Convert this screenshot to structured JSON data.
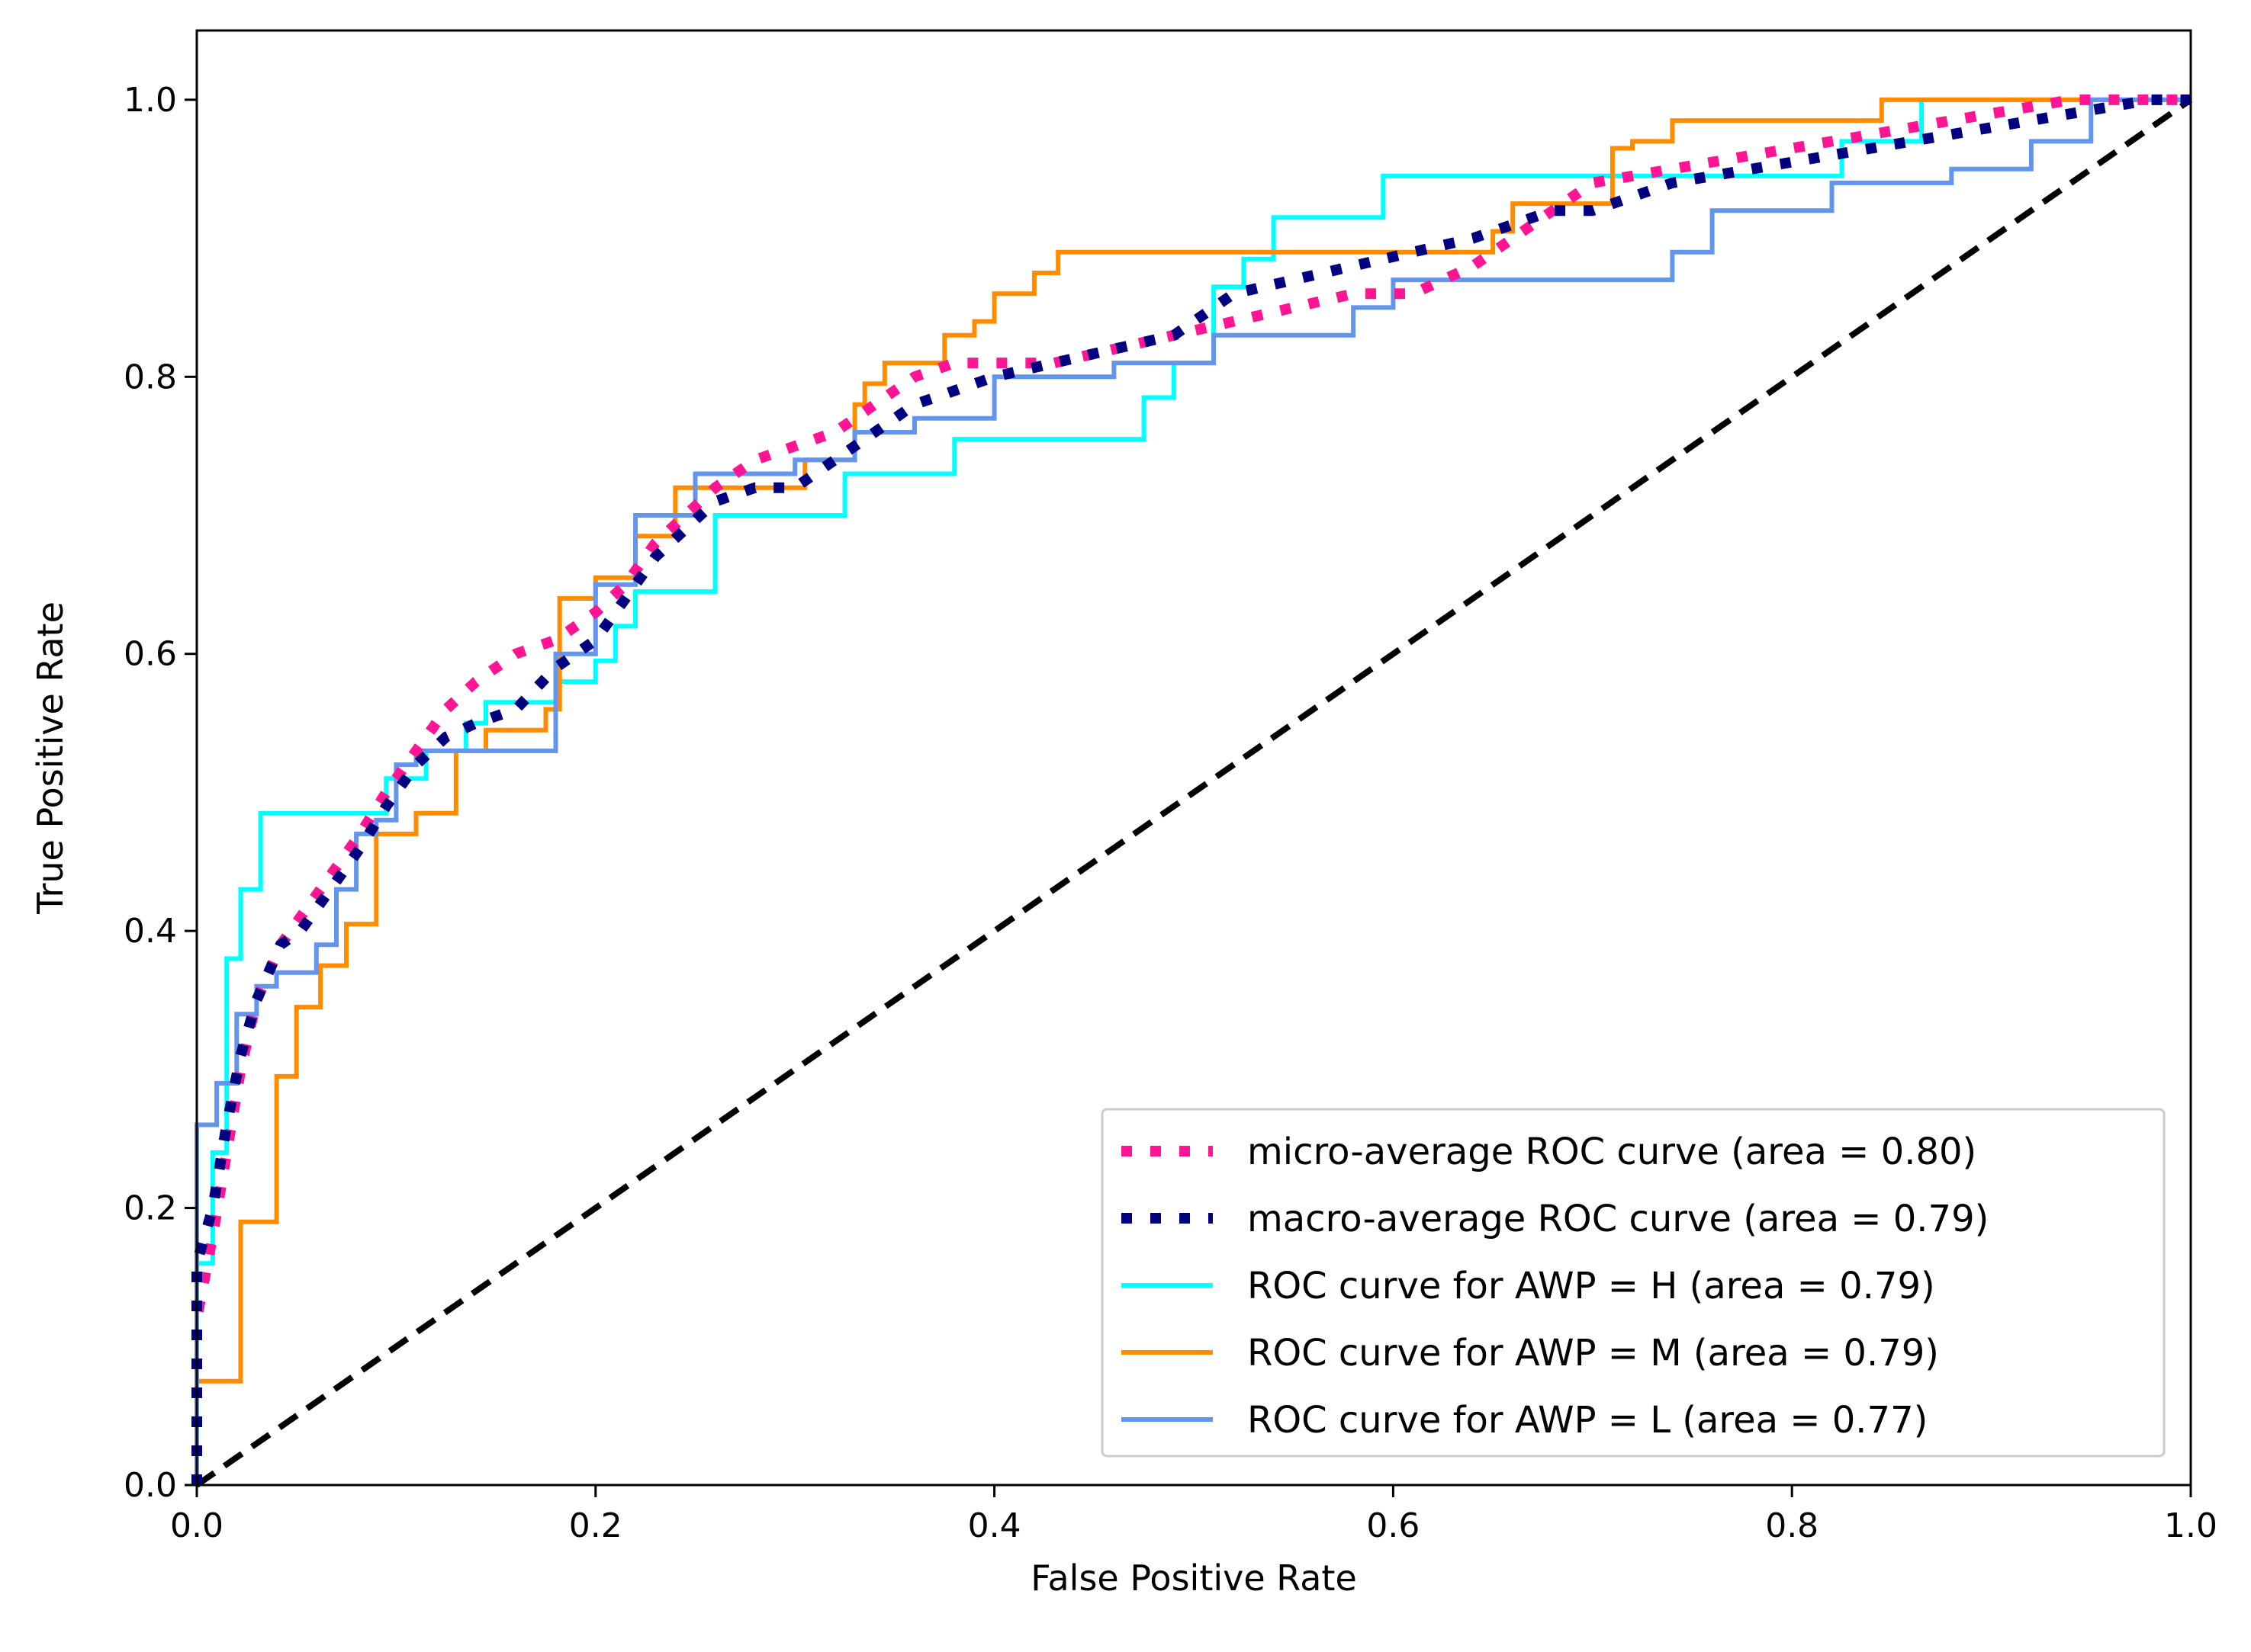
{
  "chart_data": {
    "type": "line",
    "title": "",
    "xlabel": "False Positive Rate",
    "ylabel": "True Positive Rate",
    "xlim": [
      0.0,
      1.0
    ],
    "ylim": [
      0.0,
      1.05
    ],
    "xticks": [
      "0.0",
      "0.2",
      "0.4",
      "0.6",
      "0.8",
      "1.0"
    ],
    "yticks": [
      "0.0",
      "0.2",
      "0.4",
      "0.6",
      "0.8",
      "1.0"
    ],
    "grid": false,
    "legend_position": "lower-right",
    "series": [
      {
        "name": "micro-average ROC curve (area = 0.80)",
        "color": "#ff1493",
        "style": "dotted",
        "x": [
          0.0,
          0.0,
          0.008,
          0.015,
          0.022,
          0.03,
          0.042,
          0.052,
          0.062,
          0.072,
          0.082,
          0.095,
          0.11,
          0.125,
          0.14,
          0.16,
          0.18,
          0.2,
          0.215,
          0.23,
          0.245,
          0.26,
          0.28,
          0.3,
          0.32,
          0.34,
          0.36,
          0.38,
          0.4,
          0.43,
          0.46,
          0.49,
          0.52,
          0.55,
          0.58,
          0.61,
          0.64,
          0.66,
          0.68,
          0.7,
          0.74,
          0.78,
          0.82,
          0.86,
          0.9,
          0.94,
          0.98,
          1.0
        ],
        "y": [
          0.0,
          0.12,
          0.18,
          0.24,
          0.3,
          0.35,
          0.39,
          0.41,
          0.43,
          0.45,
          0.47,
          0.5,
          0.53,
          0.56,
          0.58,
          0.6,
          0.61,
          0.63,
          0.65,
          0.68,
          0.7,
          0.72,
          0.74,
          0.75,
          0.76,
          0.78,
          0.8,
          0.81,
          0.81,
          0.81,
          0.82,
          0.83,
          0.84,
          0.85,
          0.86,
          0.86,
          0.88,
          0.9,
          0.92,
          0.94,
          0.95,
          0.96,
          0.97,
          0.98,
          0.99,
          1.0,
          1.0,
          1.0
        ]
      },
      {
        "name": "macro-average ROC curve (area = 0.79)",
        "color": "#000080",
        "style": "dotted",
        "x": [
          0.0,
          0.0,
          0.008,
          0.015,
          0.022,
          0.03,
          0.042,
          0.052,
          0.062,
          0.072,
          0.082,
          0.095,
          0.11,
          0.125,
          0.14,
          0.16,
          0.18,
          0.2,
          0.215,
          0.23,
          0.245,
          0.26,
          0.28,
          0.3,
          0.32,
          0.34,
          0.36,
          0.38,
          0.4,
          0.43,
          0.46,
          0.49,
          0.52,
          0.55,
          0.58,
          0.61,
          0.64,
          0.66,
          0.68,
          0.7,
          0.74,
          0.78,
          0.82,
          0.86,
          0.9,
          0.94,
          0.98,
          1.0
        ],
        "y": [
          0.0,
          0.16,
          0.2,
          0.26,
          0.31,
          0.35,
          0.39,
          0.4,
          0.42,
          0.44,
          0.46,
          0.49,
          0.52,
          0.54,
          0.55,
          0.56,
          0.59,
          0.61,
          0.64,
          0.67,
          0.69,
          0.71,
          0.72,
          0.72,
          0.74,
          0.76,
          0.78,
          0.79,
          0.8,
          0.81,
          0.82,
          0.83,
          0.86,
          0.87,
          0.88,
          0.89,
          0.9,
          0.91,
          0.92,
          0.92,
          0.94,
          0.95,
          0.96,
          0.97,
          0.98,
          0.99,
          1.0,
          1.0
        ]
      },
      {
        "name": "ROC curve for AWP = H (area = 0.79)",
        "color": "#00ffff",
        "style": "solid",
        "x": [
          0.0,
          0.0,
          0.008,
          0.008,
          0.015,
          0.015,
          0.022,
          0.022,
          0.032,
          0.032,
          0.095,
          0.095,
          0.115,
          0.115,
          0.135,
          0.135,
          0.145,
          0.145,
          0.18,
          0.18,
          0.2,
          0.2,
          0.21,
          0.21,
          0.22,
          0.22,
          0.235,
          0.235,
          0.26,
          0.26,
          0.325,
          0.325,
          0.38,
          0.38,
          0.475,
          0.475,
          0.49,
          0.49,
          0.51,
          0.51,
          0.525,
          0.525,
          0.54,
          0.54,
          0.595,
          0.595,
          0.825,
          0.825,
          0.865,
          0.865,
          1.0
        ],
        "y": [
          0.0,
          0.16,
          0.16,
          0.24,
          0.24,
          0.38,
          0.38,
          0.43,
          0.43,
          0.485,
          0.485,
          0.51,
          0.51,
          0.53,
          0.53,
          0.55,
          0.55,
          0.565,
          0.565,
          0.58,
          0.58,
          0.595,
          0.595,
          0.62,
          0.62,
          0.645,
          0.645,
          0.645,
          0.645,
          0.7,
          0.7,
          0.73,
          0.73,
          0.755,
          0.755,
          0.785,
          0.785,
          0.81,
          0.81,
          0.865,
          0.865,
          0.885,
          0.885,
          0.915,
          0.915,
          0.945,
          0.945,
          0.97,
          0.97,
          1.0,
          1.0
        ]
      },
      {
        "name": "ROC curve for AWP = M (area = 0.79)",
        "color": "#ff8c00",
        "style": "solid",
        "x": [
          0.0,
          0.0,
          0.022,
          0.022,
          0.04,
          0.04,
          0.05,
          0.05,
          0.062,
          0.062,
          0.075,
          0.075,
          0.09,
          0.09,
          0.11,
          0.11,
          0.13,
          0.13,
          0.145,
          0.145,
          0.175,
          0.175,
          0.182,
          0.182,
          0.2,
          0.2,
          0.22,
          0.22,
          0.24,
          0.24,
          0.305,
          0.305,
          0.33,
          0.33,
          0.335,
          0.335,
          0.345,
          0.345,
          0.375,
          0.375,
          0.39,
          0.39,
          0.4,
          0.4,
          0.42,
          0.42,
          0.432,
          0.432,
          0.65,
          0.65,
          0.66,
          0.66,
          0.71,
          0.71,
          0.72,
          0.72,
          0.74,
          0.74,
          0.845,
          0.845,
          1.0
        ],
        "y": [
          0.0,
          0.075,
          0.075,
          0.19,
          0.19,
          0.295,
          0.295,
          0.345,
          0.345,
          0.375,
          0.375,
          0.405,
          0.405,
          0.47,
          0.47,
          0.485,
          0.485,
          0.53,
          0.53,
          0.545,
          0.545,
          0.56,
          0.56,
          0.64,
          0.64,
          0.655,
          0.655,
          0.685,
          0.685,
          0.72,
          0.72,
          0.74,
          0.74,
          0.78,
          0.78,
          0.795,
          0.795,
          0.81,
          0.81,
          0.83,
          0.83,
          0.84,
          0.84,
          0.86,
          0.86,
          0.875,
          0.875,
          0.89,
          0.89,
          0.905,
          0.905,
          0.925,
          0.925,
          0.965,
          0.965,
          0.97,
          0.97,
          0.985,
          0.985,
          1.0,
          1.0
        ]
      },
      {
        "name": "ROC curve for AWP = L (area = 0.77)",
        "color": "#6495ed",
        "style": "solid",
        "x": [
          0.0,
          0.0,
          0.01,
          0.01,
          0.02,
          0.02,
          0.03,
          0.03,
          0.04,
          0.04,
          0.06,
          0.06,
          0.07,
          0.07,
          0.08,
          0.08,
          0.09,
          0.09,
          0.1,
          0.1,
          0.11,
          0.11,
          0.13,
          0.13,
          0.18,
          0.18,
          0.2,
          0.2,
          0.22,
          0.22,
          0.25,
          0.25,
          0.3,
          0.3,
          0.33,
          0.33,
          0.36,
          0.36,
          0.4,
          0.4,
          0.46,
          0.46,
          0.51,
          0.51,
          0.58,
          0.58,
          0.6,
          0.6,
          0.64,
          0.64,
          0.74,
          0.74,
          0.76,
          0.76,
          0.82,
          0.82,
          0.88,
          0.88,
          0.92,
          0.92,
          0.95,
          0.95,
          1.0
        ],
        "y": [
          0.0,
          0.26,
          0.26,
          0.29,
          0.29,
          0.34,
          0.34,
          0.36,
          0.36,
          0.37,
          0.37,
          0.39,
          0.39,
          0.43,
          0.43,
          0.47,
          0.47,
          0.48,
          0.48,
          0.52,
          0.52,
          0.53,
          0.53,
          0.53,
          0.53,
          0.6,
          0.6,
          0.65,
          0.65,
          0.7,
          0.7,
          0.73,
          0.73,
          0.74,
          0.74,
          0.76,
          0.76,
          0.77,
          0.77,
          0.8,
          0.8,
          0.81,
          0.81,
          0.83,
          0.83,
          0.85,
          0.85,
          0.87,
          0.87,
          0.87,
          0.87,
          0.89,
          0.89,
          0.92,
          0.92,
          0.94,
          0.94,
          0.95,
          0.95,
          0.97,
          0.97,
          1.0,
          1.0
        ]
      },
      {
        "name": "",
        "color": "#000000",
        "style": "dashed",
        "x": [
          0.0,
          1.0
        ],
        "y": [
          0.0,
          1.0
        ]
      }
    ]
  }
}
